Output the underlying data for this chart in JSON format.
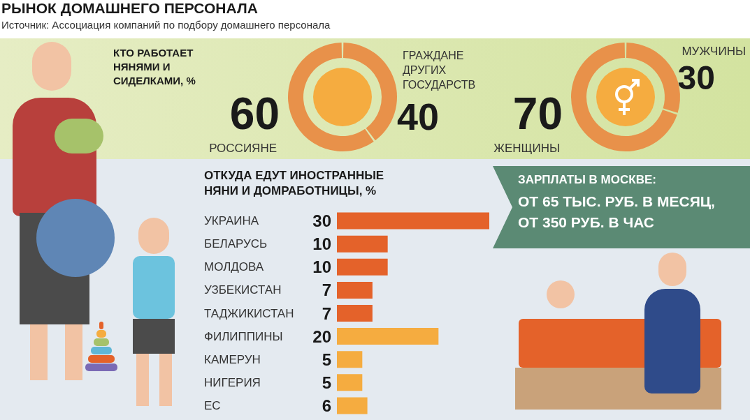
{
  "chart_data": [
    {
      "type": "other",
      "title": "РЫНОК ДОМАШНЕГО ПЕРСОНАЛА",
      "annotations": [
        "Источник: Ассоциация компаний по подбору домашнего персонала"
      ]
    },
    {
      "type": "donut",
      "title": "КТО РАБОТАЕТ НЯНЯМИ И СИДЕЛКАМИ, %",
      "categories": [
        "РОССИЯНЕ",
        "ГРАЖДАНЕ ДРУГИХ ГОСУДАРСТВ"
      ],
      "values": [
        60,
        40
      ],
      "colors": [
        "#e8914a",
        "#e8914a"
      ],
      "data_labels": true
    },
    {
      "type": "donut",
      "categories": [
        "ЖЕНЩИНЫ",
        "МУЖЧИНЫ"
      ],
      "values": [
        70,
        30
      ],
      "colors": [
        "#e8914a",
        "#e8914a"
      ],
      "data_labels": true
    },
    {
      "type": "bar",
      "orientation": "horizontal",
      "title": "ОТКУДА ЕДУТ ИНОСТРАННЫЕ НЯНИ И ДОМРАБОТНИЦЫ, %",
      "categories": [
        "УКРАИНА",
        "БЕЛАРУСЬ",
        "МОЛДОВА",
        "УЗБЕКИСТАН",
        "ТАДЖИКИСТАН",
        "ФИЛИППИНЫ",
        "КАМЕРУН",
        "НИГЕРИЯ",
        "ЕС"
      ],
      "values": [
        30,
        10,
        10,
        7,
        7,
        20,
        5,
        5,
        6
      ],
      "colors": [
        "#e4622a",
        "#e4622a",
        "#e4622a",
        "#e4622a",
        "#e4622a",
        "#f5ac40",
        "#f5ac40",
        "#f5ac40",
        "#f5ac40"
      ],
      "data_labels": true
    },
    {
      "type": "other",
      "title": "ЗАРПЛАТЫ В МОСКВЕ:",
      "annotations": [
        "ОТ 65 ТЫС. РУБ. В МЕСЯЦ,",
        "ОТ 350 РУБ. В ЧАС"
      ]
    }
  ]
}
